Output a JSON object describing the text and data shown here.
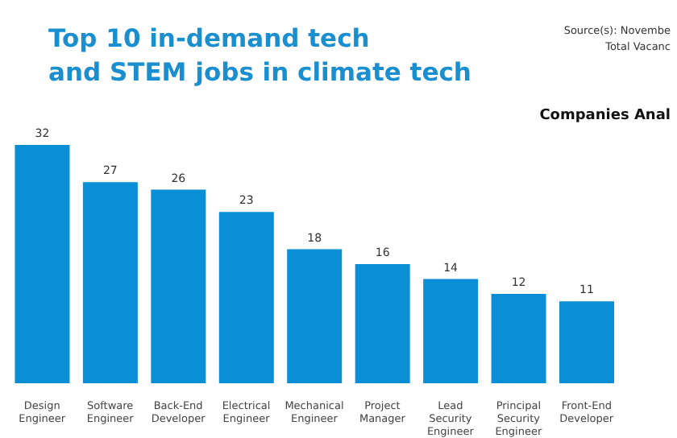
{
  "chart_data": {
    "type": "bar",
    "title": "Top 10 in-demand tech\nand STEM jobs in climate tech",
    "categories": [
      "Design Engineer",
      "Software Engineer",
      "Back-End Developer",
      "Electrical Engineer",
      "Mechanical Engineer",
      "Project Manager",
      "Lead Security Engineer",
      "Principal Security Engineer",
      "Front-End Developer"
    ],
    "values": [
      32,
      27,
      26,
      23,
      18,
      16,
      14,
      12,
      11
    ],
    "color": "#0a8fd6",
    "data_labels": true,
    "annotations": [
      "Source(s): Novembe",
      "Total Vacanc",
      "Companies Anal"
    ]
  }
}
